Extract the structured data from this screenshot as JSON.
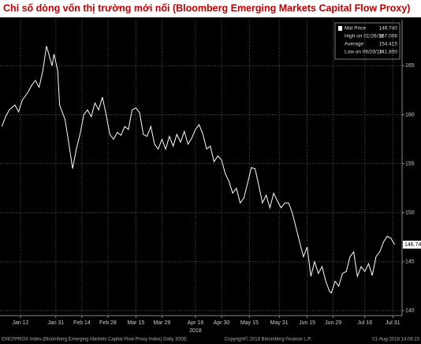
{
  "chart_data": {
    "type": "line",
    "title": "Chỉ số dòng vốn thị trường mới nổi (Bloomberg Emerging Markets Capital Flow Proxy)",
    "x": [
      "2018-01-02",
      "2018-01-04",
      "2018-01-06",
      "2018-01-09",
      "2018-01-11",
      "2018-01-13",
      "2018-01-16",
      "2018-01-18",
      "2018-01-20",
      "2018-01-22",
      "2018-01-24",
      "2018-01-26",
      "2018-01-29",
      "2018-01-30",
      "2018-02-01",
      "2018-02-02",
      "2018-02-05",
      "2018-02-07",
      "2018-02-09",
      "2018-02-11",
      "2018-02-13",
      "2018-02-15",
      "2018-02-17",
      "2018-02-19",
      "2018-02-21",
      "2018-02-23",
      "2018-02-25",
      "2018-02-27",
      "2018-03-01",
      "2018-03-03",
      "2018-03-05",
      "2018-03-07",
      "2018-03-09",
      "2018-03-11",
      "2018-03-13",
      "2018-03-15",
      "2018-03-17",
      "2018-03-19",
      "2018-03-21",
      "2018-03-23",
      "2018-03-25",
      "2018-03-27",
      "2018-03-29",
      "2018-03-31",
      "2018-04-02",
      "2018-04-04",
      "2018-04-06",
      "2018-04-08",
      "2018-04-10",
      "2018-04-12",
      "2018-04-14",
      "2018-04-16",
      "2018-04-18",
      "2018-04-20",
      "2018-04-22",
      "2018-04-24",
      "2018-04-26",
      "2018-04-28",
      "2018-04-30",
      "2018-05-02",
      "2018-05-04",
      "2018-05-06",
      "2018-05-08",
      "2018-05-10",
      "2018-05-12",
      "2018-05-14",
      "2018-05-16",
      "2018-05-18",
      "2018-05-20",
      "2018-05-22",
      "2018-05-24",
      "2018-05-26",
      "2018-05-28",
      "2018-05-30",
      "2018-06-01",
      "2018-06-03",
      "2018-06-05",
      "2018-06-07",
      "2018-06-09",
      "2018-06-11",
      "2018-06-13",
      "2018-06-15",
      "2018-06-17",
      "2018-06-19",
      "2018-06-21",
      "2018-06-23",
      "2018-06-25",
      "2018-06-27",
      "2018-06-28",
      "2018-06-30",
      "2018-07-02",
      "2018-07-04",
      "2018-07-06",
      "2018-07-08",
      "2018-07-10",
      "2018-07-12",
      "2018-07-14",
      "2018-07-16",
      "2018-07-18",
      "2018-07-20",
      "2018-07-22",
      "2018-07-24",
      "2018-07-26",
      "2018-07-28",
      "2018-07-30",
      "2018-08-01"
    ],
    "series": [
      {
        "name": "Mid Price",
        "color": "#ffffff",
        "values": [
          158.8,
          159.8,
          160.5,
          161.0,
          160.3,
          161.5,
          162.3,
          163.0,
          163.5,
          162.8,
          164.5,
          167.0,
          165.0,
          166.2,
          164.5,
          161.0,
          159.5,
          157.0,
          154.5,
          156.5,
          158.0,
          160.0,
          160.5,
          159.8,
          161.2,
          160.5,
          161.8,
          160.0,
          158.0,
          157.5,
          158.2,
          157.9,
          158.8,
          158.5,
          160.5,
          160.7,
          160.2,
          158.0,
          157.8,
          158.8,
          157.0,
          156.5,
          157.5,
          156.5,
          157.8,
          156.8,
          158.0,
          157.2,
          158.3,
          157.0,
          157.6,
          158.5,
          159.0,
          158.0,
          156.5,
          156.8,
          155.2,
          155.8,
          155.4,
          154.0,
          153.2,
          152.0,
          152.5,
          151.0,
          151.5,
          153.0,
          154.6,
          154.5,
          152.8,
          151.0,
          151.8,
          150.5,
          152.0,
          151.2,
          150.5,
          151.0,
          151.0,
          150.0,
          148.5,
          147.0,
          145.5,
          146.5,
          143.5,
          145.0,
          143.8,
          144.5,
          143.0,
          142.0,
          141.8,
          143.0,
          142.5,
          143.8,
          144.0,
          145.5,
          146.0,
          143.5,
          144.5,
          144.0,
          144.8,
          143.6,
          145.5,
          146.0,
          147.0,
          147.6,
          147.4,
          146.74
        ]
      }
    ],
    "last_value_label": "146.740",
    "xlim": [
      "2018-01-01",
      "2018-08-05"
    ],
    "xticks": [
      {
        "value": "2018-01-12",
        "label": "Jan 12"
      },
      {
        "value": "2018-01-31",
        "label": "Jan 31"
      },
      {
        "value": "2018-02-14",
        "label": "Feb 14"
      },
      {
        "value": "2018-02-28",
        "label": "Feb 28"
      },
      {
        "value": "2018-03-15",
        "label": "Mar 15"
      },
      {
        "value": "2018-03-29",
        "label": "Mar 29"
      },
      {
        "value": "2018-04-16",
        "label": "Apr 16"
      },
      {
        "value": "2018-04-30",
        "label": "Apr 30"
      },
      {
        "value": "2018-05-15",
        "label": "May 15"
      },
      {
        "value": "2018-05-31",
        "label": "May 31"
      },
      {
        "value": "2018-06-15",
        "label": "Jun 15"
      },
      {
        "value": "2018-06-29",
        "label": "Jun 29"
      },
      {
        "value": "2018-07-16",
        "label": "Jul 16"
      },
      {
        "value": "2018-07-31",
        "label": "Jul 31"
      }
    ],
    "xlabel": "2018",
    "ylim": [
      139.5,
      169.7
    ],
    "yticks": [
      140,
      145,
      150,
      155,
      160,
      165
    ],
    "grid": true,
    "legend": [
      {
        "text": "Mid Price",
        "value": "146.740"
      },
      {
        "text": "High on 01/26/18",
        "value": "167.006"
      },
      {
        "text": "Average",
        "value": "154.415"
      },
      {
        "text": "Low on 06/28/18",
        "value": "141.800"
      }
    ],
    "footer": {
      "left": "EMCFPROX Index (Bloomberg Emerging Markets Capital Flow Proxy Index)  Daily 30DE",
      "center": "Copyright© 2018 Bloomberg Finance L.P.",
      "right": "01-Aug-2018 14:08:23"
    }
  }
}
